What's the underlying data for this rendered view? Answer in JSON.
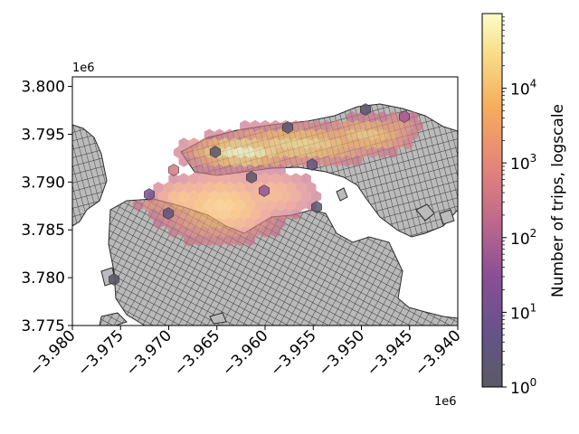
{
  "chart_data": {
    "type": "heatmap",
    "subtype": "hexbin map over a polygon basemap",
    "title": "",
    "xlabel": "",
    "ylabel": "",
    "x_offset_label": "1e6",
    "y_offset_label": "1e6",
    "xlim": [
      -3.98,
      -3.94
    ],
    "ylim": [
      3.775,
      3.801
    ],
    "x_ticks": [
      "−3.980",
      "−3.975",
      "−3.970",
      "−3.965",
      "−3.960",
      "−3.955",
      "−3.950",
      "−3.945",
      "−3.940"
    ],
    "x_tick_values": [
      -3.98,
      -3.975,
      -3.97,
      -3.965,
      -3.96,
      -3.955,
      -3.95,
      -3.945,
      -3.94
    ],
    "y_ticks": [
      "3.775",
      "3.780",
      "3.785",
      "3.790",
      "3.795",
      "3.800"
    ],
    "y_tick_values": [
      3.775,
      3.78,
      3.785,
      3.79,
      3.795,
      3.8
    ],
    "colorbar": {
      "label": "Number of trips, logscale",
      "scale": "log",
      "colormap": "inferno (semi-transparent)",
      "min": 1,
      "max": 100000,
      "ticks": [
        {
          "base": "10",
          "exp": "0",
          "value": 1
        },
        {
          "base": "10",
          "exp": "1",
          "value": 10
        },
        {
          "base": "10",
          "exp": "2",
          "value": 100
        },
        {
          "base": "10",
          "exp": "3",
          "value": 1000
        },
        {
          "base": "10",
          "exp": "4",
          "value": 10000
        }
      ]
    },
    "basemap_color": "#bdbdbd",
    "basemap_edge_color": "#2b2b2b",
    "grid": false
  }
}
